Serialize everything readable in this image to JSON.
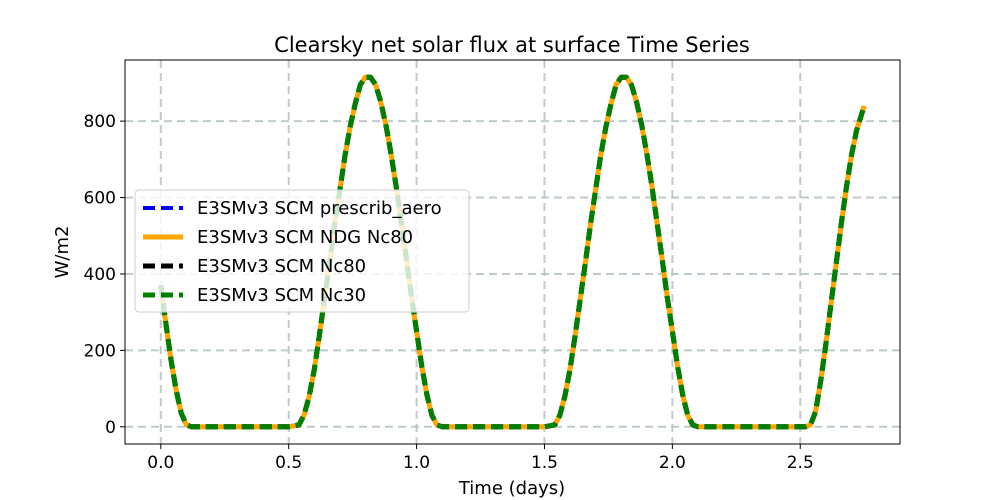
{
  "chart_data": {
    "type": "line",
    "title": "Clearsky net solar flux at surface Time Series",
    "xlabel": "Time (days)",
    "ylabel": "W/m2",
    "xlim": [
      -0.14,
      2.89
    ],
    "ylim": [
      -45,
      960
    ],
    "xticks": [
      0.0,
      0.5,
      1.0,
      1.5,
      2.0,
      2.5
    ],
    "xtick_labels": [
      "0.0",
      "0.5",
      "1.0",
      "1.5",
      "2.0",
      "2.5"
    ],
    "yticks": [
      0,
      200,
      400,
      600,
      800
    ],
    "ytick_labels": [
      "0",
      "200",
      "400",
      "600",
      "800"
    ],
    "grid": true,
    "legend_position": "center-left",
    "series": [
      {
        "name": "E3SMv3 SCM prescrib_aero",
        "color": "#0000ff",
        "style": "dashed",
        "x": [
          0.0,
          0.02,
          0.04,
          0.06,
          0.08,
          0.1,
          0.12,
          0.5,
          0.54,
          0.56,
          0.58,
          0.6,
          0.62,
          0.64,
          0.66,
          0.68,
          0.7,
          0.72,
          0.74,
          0.76,
          0.78,
          0.8,
          0.82,
          0.84,
          0.86,
          0.88,
          0.9,
          0.92,
          0.94,
          0.96,
          0.98,
          1.0,
          1.02,
          1.04,
          1.06,
          1.08,
          1.1,
          1.12,
          1.5,
          1.54,
          1.56,
          1.58,
          1.6,
          1.62,
          1.64,
          1.66,
          1.68,
          1.7,
          1.72,
          1.74,
          1.76,
          1.78,
          1.8,
          1.82,
          1.84,
          1.86,
          1.88,
          1.9,
          1.92,
          1.94,
          1.96,
          1.98,
          2.0,
          2.02,
          2.04,
          2.06,
          2.08,
          2.1,
          2.12,
          2.52,
          2.54,
          2.56,
          2.58,
          2.6,
          2.62,
          2.64,
          2.66,
          2.68,
          2.7,
          2.72,
          2.75
        ],
        "y": [
          370,
          270,
          175,
          95,
          35,
          5,
          0,
          0,
          5,
          30,
          80,
          150,
          240,
          335,
          430,
          530,
          620,
          710,
          785,
          845,
          895,
          915,
          915,
          895,
          850,
          790,
          715,
          630,
          535,
          440,
          340,
          250,
          160,
          85,
          30,
          5,
          0,
          0,
          0,
          5,
          30,
          80,
          150,
          240,
          335,
          430,
          530,
          620,
          710,
          785,
          845,
          895,
          915,
          915,
          895,
          850,
          790,
          715,
          630,
          535,
          440,
          340,
          250,
          160,
          85,
          30,
          5,
          0,
          0,
          0,
          5,
          40,
          120,
          215,
          320,
          425,
          530,
          625,
          710,
          775,
          840
        ]
      },
      {
        "name": "E3SMv3 SCM NDG Nc80",
        "color": "#ffa500",
        "style": "solid",
        "x": [
          0.0,
          0.02,
          0.04,
          0.06,
          0.08,
          0.1,
          0.12,
          0.5,
          0.54,
          0.56,
          0.58,
          0.6,
          0.62,
          0.64,
          0.66,
          0.68,
          0.7,
          0.72,
          0.74,
          0.76,
          0.78,
          0.8,
          0.82,
          0.84,
          0.86,
          0.88,
          0.9,
          0.92,
          0.94,
          0.96,
          0.98,
          1.0,
          1.02,
          1.04,
          1.06,
          1.08,
          1.1,
          1.12,
          1.5,
          1.54,
          1.56,
          1.58,
          1.6,
          1.62,
          1.64,
          1.66,
          1.68,
          1.7,
          1.72,
          1.74,
          1.76,
          1.78,
          1.8,
          1.82,
          1.84,
          1.86,
          1.88,
          1.9,
          1.92,
          1.94,
          1.96,
          1.98,
          2.0,
          2.02,
          2.04,
          2.06,
          2.08,
          2.1,
          2.12,
          2.52,
          2.54,
          2.56,
          2.58,
          2.6,
          2.62,
          2.64,
          2.66,
          2.68,
          2.7,
          2.72,
          2.75
        ],
        "y": [
          370,
          270,
          175,
          95,
          35,
          5,
          0,
          0,
          5,
          30,
          80,
          150,
          240,
          335,
          430,
          530,
          620,
          710,
          785,
          845,
          895,
          915,
          915,
          895,
          850,
          790,
          715,
          630,
          535,
          440,
          340,
          250,
          160,
          85,
          30,
          5,
          0,
          0,
          0,
          5,
          30,
          80,
          150,
          240,
          335,
          430,
          530,
          620,
          710,
          785,
          845,
          895,
          915,
          915,
          895,
          850,
          790,
          715,
          630,
          535,
          440,
          340,
          250,
          160,
          85,
          30,
          5,
          0,
          0,
          0,
          5,
          40,
          120,
          215,
          320,
          425,
          530,
          625,
          710,
          775,
          840
        ]
      },
      {
        "name": "E3SMv3 SCM Nc80",
        "color": "#000000",
        "style": "dashed",
        "x": [
          0.0,
          0.02,
          0.04,
          0.06,
          0.08,
          0.1,
          0.12,
          0.5,
          0.54,
          0.56,
          0.58,
          0.6,
          0.62,
          0.64,
          0.66,
          0.68,
          0.7,
          0.72,
          0.74,
          0.76,
          0.78,
          0.8,
          0.82,
          0.84,
          0.86,
          0.88,
          0.9,
          0.92,
          0.94,
          0.96,
          0.98,
          1.0,
          1.02,
          1.04,
          1.06,
          1.08,
          1.1,
          1.12,
          1.5,
          1.54,
          1.56,
          1.58,
          1.6,
          1.62,
          1.64,
          1.66,
          1.68,
          1.7,
          1.72,
          1.74,
          1.76,
          1.78,
          1.8,
          1.82,
          1.84,
          1.86,
          1.88,
          1.9,
          1.92,
          1.94,
          1.96,
          1.98,
          2.0,
          2.02,
          2.04,
          2.06,
          2.08,
          2.1,
          2.12,
          2.52,
          2.54,
          2.56,
          2.58,
          2.6,
          2.62,
          2.64,
          2.66,
          2.68,
          2.7,
          2.72,
          2.75
        ],
        "y": [
          370,
          270,
          175,
          95,
          35,
          5,
          0,
          0,
          5,
          30,
          80,
          150,
          240,
          335,
          430,
          530,
          620,
          710,
          785,
          845,
          895,
          915,
          915,
          895,
          850,
          790,
          715,
          630,
          535,
          440,
          340,
          250,
          160,
          85,
          30,
          5,
          0,
          0,
          0,
          5,
          30,
          80,
          150,
          240,
          335,
          430,
          530,
          620,
          710,
          785,
          845,
          895,
          915,
          915,
          895,
          850,
          790,
          715,
          630,
          535,
          440,
          340,
          250,
          160,
          85,
          30,
          5,
          0,
          0,
          0,
          5,
          40,
          120,
          215,
          320,
          425,
          530,
          625,
          710,
          775,
          840
        ]
      },
      {
        "name": "E3SMv3 SCM Nc30",
        "color": "#008000",
        "style": "dashed",
        "x": [
          0.0,
          0.02,
          0.04,
          0.06,
          0.08,
          0.1,
          0.12,
          0.5,
          0.54,
          0.56,
          0.58,
          0.6,
          0.62,
          0.64,
          0.66,
          0.68,
          0.7,
          0.72,
          0.74,
          0.76,
          0.78,
          0.8,
          0.82,
          0.84,
          0.86,
          0.88,
          0.9,
          0.92,
          0.94,
          0.96,
          0.98,
          1.0,
          1.02,
          1.04,
          1.06,
          1.08,
          1.1,
          1.12,
          1.5,
          1.54,
          1.56,
          1.58,
          1.6,
          1.62,
          1.64,
          1.66,
          1.68,
          1.7,
          1.72,
          1.74,
          1.76,
          1.78,
          1.8,
          1.82,
          1.84,
          1.86,
          1.88,
          1.9,
          1.92,
          1.94,
          1.96,
          1.98,
          2.0,
          2.02,
          2.04,
          2.06,
          2.08,
          2.1,
          2.12,
          2.52,
          2.54,
          2.56,
          2.58,
          2.6,
          2.62,
          2.64,
          2.66,
          2.68,
          2.7,
          2.72,
          2.75
        ],
        "y": [
          370,
          270,
          175,
          95,
          35,
          5,
          0,
          0,
          5,
          30,
          80,
          150,
          240,
          335,
          430,
          530,
          620,
          710,
          785,
          845,
          895,
          915,
          915,
          895,
          850,
          790,
          715,
          630,
          535,
          440,
          340,
          250,
          160,
          85,
          30,
          5,
          0,
          0,
          0,
          5,
          30,
          80,
          150,
          240,
          335,
          430,
          530,
          620,
          710,
          785,
          845,
          895,
          915,
          915,
          895,
          850,
          790,
          715,
          630,
          535,
          440,
          340,
          250,
          160,
          85,
          30,
          5,
          0,
          0,
          0,
          5,
          40,
          120,
          215,
          320,
          425,
          530,
          625,
          710,
          775,
          840
        ]
      }
    ]
  }
}
